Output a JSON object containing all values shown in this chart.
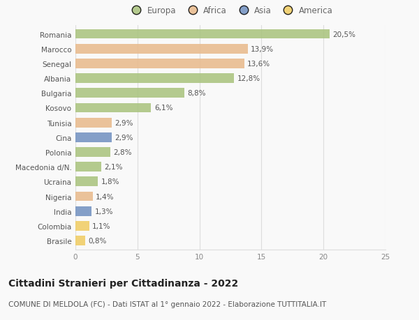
{
  "countries": [
    "Romania",
    "Marocco",
    "Senegal",
    "Albania",
    "Bulgaria",
    "Kosovo",
    "Tunisia",
    "Cina",
    "Polonia",
    "Macedonia d/N.",
    "Ucraina",
    "Nigeria",
    "India",
    "Colombia",
    "Brasile"
  ],
  "values": [
    20.5,
    13.9,
    13.6,
    12.8,
    8.8,
    6.1,
    2.9,
    2.9,
    2.8,
    2.1,
    1.8,
    1.4,
    1.3,
    1.1,
    0.8
  ],
  "labels": [
    "20,5%",
    "13,9%",
    "13,6%",
    "12,8%",
    "8,8%",
    "6,1%",
    "2,9%",
    "2,9%",
    "2,8%",
    "2,1%",
    "1,8%",
    "1,4%",
    "1,3%",
    "1,1%",
    "0,8%"
  ],
  "continents": [
    "Europa",
    "Africa",
    "Africa",
    "Europa",
    "Europa",
    "Europa",
    "Africa",
    "Asia",
    "Europa",
    "Europa",
    "Europa",
    "Africa",
    "Asia",
    "America",
    "America"
  ],
  "continent_colors": {
    "Europa": "#a8c27c",
    "Africa": "#e8b98a",
    "Asia": "#7090c0",
    "America": "#f0cc60"
  },
  "legend_order": [
    "Europa",
    "Africa",
    "Asia",
    "America"
  ],
  "title": "Cittadini Stranieri per Cittadinanza - 2022",
  "subtitle": "COMUNE DI MELDOLA (FC) - Dati ISTAT al 1° gennaio 2022 - Elaborazione TUTTITALIA.IT",
  "xlim": [
    0,
    25
  ],
  "xticks": [
    0,
    5,
    10,
    15,
    20,
    25
  ],
  "background_color": "#f9f9f9",
  "grid_color": "#dddddd",
  "bar_height": 0.65,
  "title_fontsize": 10,
  "subtitle_fontsize": 7.5,
  "label_fontsize": 7.5,
  "tick_fontsize": 7.5,
  "legend_fontsize": 8.5
}
